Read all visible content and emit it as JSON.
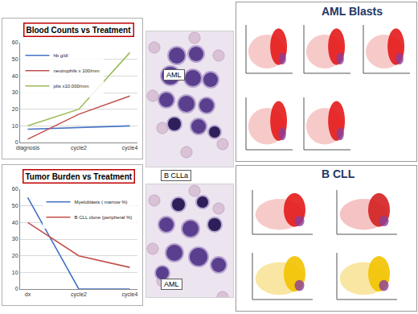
{
  "chart_data": [
    {
      "type": "line",
      "title": "Blood Counts vs Treatment",
      "categories": [
        "diagnosis",
        "cycle2",
        "cycle4"
      ],
      "series": [
        {
          "name": "hb g/dl",
          "color": "#4472c4",
          "values": [
            8,
            9,
            10
          ]
        },
        {
          "name": "neutrophils x 100/mm",
          "color": "#c0504d",
          "values": [
            2,
            17,
            28
          ]
        },
        {
          "name": "plts x10.000/mm",
          "color": "#9bbb59",
          "values": [
            10,
            20,
            54
          ]
        }
      ],
      "ylim": [
        0,
        60
      ],
      "yticks": [
        0,
        10,
        20,
        30,
        40,
        50,
        60
      ],
      "grid": true,
      "legend": "top-left"
    },
    {
      "type": "line",
      "title": "Tumor Burden vs Treatment",
      "categories": [
        "dx",
        "cycle2",
        "cycle4"
      ],
      "series": [
        {
          "name": "Myeloblasts ( marrow %)",
          "color": "#4472c4",
          "values": [
            55,
            0,
            0
          ]
        },
        {
          "name": "B CLL clone (peripheral %)",
          "color": "#c0504d",
          "values": [
            40,
            20,
            13
          ]
        }
      ],
      "ylim": [
        0,
        60
      ],
      "yticks": [
        0,
        10,
        20,
        30,
        40,
        50,
        60
      ],
      "grid": true,
      "legend": "top-right"
    }
  ],
  "micrographs": {
    "labels": [
      "AML",
      "B CLLa",
      "AML"
    ]
  },
  "flow_panels": [
    {
      "title": "AML Blasts"
    },
    {
      "title": "B CLL"
    }
  ]
}
